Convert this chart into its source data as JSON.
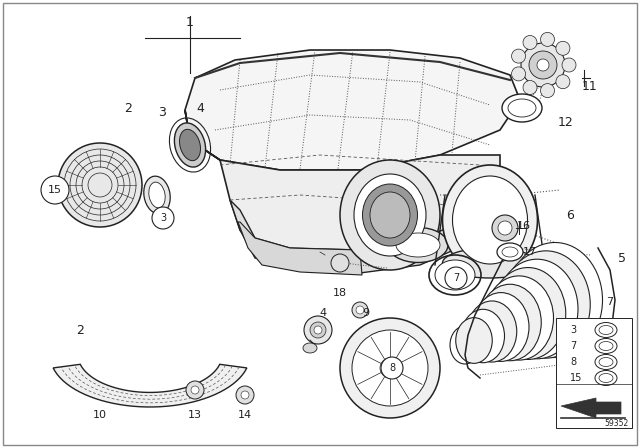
{
  "background_color": "#ffffff",
  "fig_width": 6.4,
  "fig_height": 4.48,
  "dpi": 100,
  "part_number": "59352",
  "gray": "#222222",
  "lgray": "#555555",
  "fgray": "#aaaaaa"
}
